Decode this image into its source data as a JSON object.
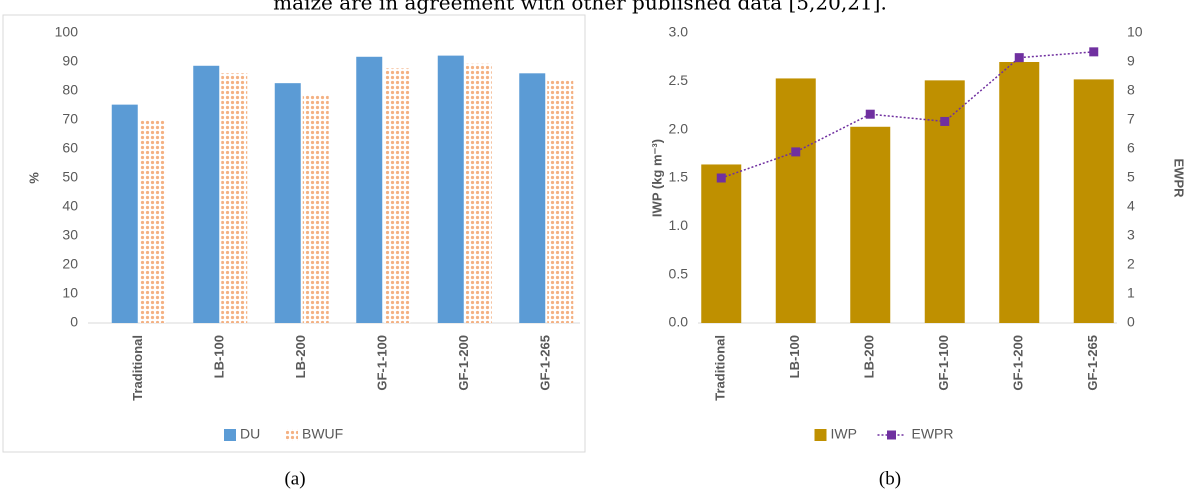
{
  "page_text": "maize are in agreement with other published data [5,20,21].",
  "chart_data": [
    {
      "type": "bar",
      "caption": "(a)",
      "y_label": "%",
      "categories": [
        "Traditional",
        "LB-100",
        "LB-200",
        "GF-1-100",
        "GF-1-200",
        "GF-1-265"
      ],
      "series": [
        {
          "name": "DU",
          "color": "#5b9bd5",
          "values": [
            75.3,
            88.7,
            82.7,
            91.8,
            92.2,
            86.1
          ]
        },
        {
          "name": "BWUF",
          "color": "#f4b183",
          "pattern": "dots",
          "values": [
            70.1,
            86.1,
            78.8,
            87.8,
            89.4,
            83.9
          ]
        }
      ],
      "ylim": [
        0,
        100
      ],
      "yticks": [
        0,
        10,
        20,
        30,
        40,
        50,
        60,
        70,
        80,
        90,
        100
      ],
      "grid": false,
      "legend": "bottom"
    },
    {
      "type": "bar-line",
      "caption": "(b)",
      "y_label": "IWP (kg m⁻³)",
      "y2_label": "EWPR",
      "categories": [
        "Traditional",
        "LB-100",
        "LB-200",
        "GF-1-100",
        "GF-1-200",
        "GF-1-265"
      ],
      "series": [
        {
          "name": "IWP",
          "color": "#bf9000",
          "kind": "bar",
          "values": [
            1.64,
            2.53,
            2.03,
            2.51,
            2.7,
            2.52
          ]
        },
        {
          "name": "EWPR",
          "color": "#7030a0",
          "kind": "line",
          "axis": "y2",
          "values": [
            5.0,
            5.9,
            7.2,
            6.95,
            9.15,
            9.35
          ]
        }
      ],
      "ylim": [
        0,
        3
      ],
      "yticks": [
        {
          "value": 0,
          "label": "0.0"
        },
        0.5,
        {
          "value": 1,
          "label": "1.0"
        },
        1.5,
        {
          "value": 2,
          "label": "2.0"
        },
        2.5,
        {
          "value": 3,
          "label": "3.0"
        }
      ],
      "y2lim": [
        0,
        10
      ],
      "y2ticks": [
        0,
        1,
        2,
        3,
        4,
        5,
        6,
        7,
        8,
        9,
        10
      ],
      "grid": false,
      "legend": "bottom"
    }
  ]
}
